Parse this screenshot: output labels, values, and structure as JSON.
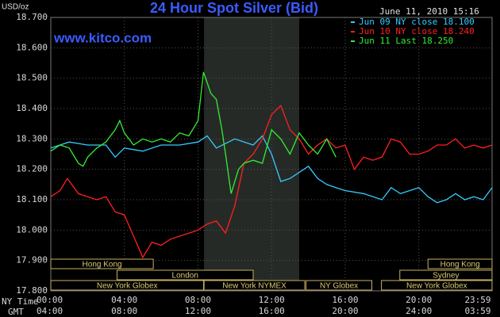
{
  "chart_data": {
    "type": "line",
    "title": "24 Hour Spot Silver (Bid)",
    "timestamp": "June 11, 2010 15:16",
    "y_unit": "USD/oz",
    "source": "www.kitco.com",
    "x_axis_labels": [
      "NY Time",
      "GMT"
    ],
    "xlim": [
      0,
      23.983
    ],
    "xticks": [
      {
        "value": 0,
        "label": "00:00"
      },
      {
        "value": 4,
        "label": "04:00"
      },
      {
        "value": 8,
        "label": "08:00"
      },
      {
        "value": 12,
        "label": "12:00"
      },
      {
        "value": 16,
        "label": "16:00"
      },
      {
        "value": 20,
        "label": "20:00"
      },
      {
        "value": 23.983,
        "label": "23:59"
      }
    ],
    "gmt_tick_labels": [
      "04:00",
      "08:00",
      "12:00",
      "16:00",
      "20:00",
      "24:00",
      "03:59"
    ],
    "ylim": [
      17.8,
      18.7
    ],
    "yticks": [
      {
        "value": 17.8,
        "label": "17.800"
      },
      {
        "value": 17.9,
        "label": "17.900"
      },
      {
        "value": 18.0,
        "label": "18.000"
      },
      {
        "value": 18.1,
        "label": "18.100"
      },
      {
        "value": 18.2,
        "label": "18.200"
      },
      {
        "value": 18.3,
        "label": "18.300"
      },
      {
        "value": 18.4,
        "label": "18.400"
      },
      {
        "value": 18.5,
        "label": "18.500"
      },
      {
        "value": 18.6,
        "label": "18.600"
      },
      {
        "value": 18.7,
        "label": "18.700"
      }
    ],
    "grid": true,
    "shaded_range": [
      8.33,
      13.5
    ],
    "series": [
      {
        "name": "Jun 09 NY close 18.100",
        "color": "#33ccff",
        "x": [
          0,
          1,
          2,
          3,
          3.5,
          4,
          5,
          6,
          7,
          8,
          8.5,
          9,
          10,
          11,
          11.5,
          12,
          12.5,
          13,
          13.5,
          14,
          14.5,
          15,
          15.5,
          16,
          17,
          18,
          18.5,
          19,
          20,
          20.5,
          21,
          21.5,
          22,
          22.5,
          23,
          23.5,
          23.983
        ],
        "values": [
          18.27,
          18.29,
          18.28,
          18.28,
          18.24,
          18.27,
          18.26,
          18.28,
          18.28,
          18.29,
          18.31,
          18.27,
          18.3,
          18.28,
          18.31,
          18.25,
          18.16,
          18.17,
          18.19,
          18.21,
          18.17,
          18.15,
          18.14,
          18.13,
          18.12,
          18.1,
          18.14,
          18.12,
          18.14,
          18.11,
          18.09,
          18.1,
          18.12,
          18.1,
          18.11,
          18.1,
          18.14
        ]
      },
      {
        "name": "Jun 10 NY close 18.240",
        "color": "#ff2020",
        "x": [
          0,
          0.5,
          0.9,
          1.5,
          2,
          2.5,
          3,
          3.5,
          4,
          4.5,
          5,
          5.5,
          6,
          6.5,
          7,
          7.5,
          8,
          8.5,
          9,
          9.5,
          10,
          10.5,
          11,
          11.5,
          12,
          12.5,
          13,
          13.5,
          14,
          14.5,
          15,
          15.5,
          16,
          16.5,
          17,
          17.5,
          18,
          18.5,
          19,
          19.5,
          20,
          20.5,
          21,
          21.5,
          22,
          22.5,
          23,
          23.5,
          23.983
        ],
        "values": [
          18.11,
          18.13,
          18.17,
          18.12,
          18.11,
          18.1,
          18.11,
          18.06,
          18.05,
          17.98,
          17.91,
          17.96,
          17.95,
          17.97,
          17.98,
          17.99,
          18.0,
          18.02,
          18.03,
          17.99,
          18.08,
          18.22,
          18.25,
          18.3,
          18.38,
          18.41,
          18.33,
          18.3,
          18.25,
          18.28,
          18.3,
          18.27,
          18.28,
          18.2,
          18.24,
          18.23,
          18.24,
          18.3,
          18.29,
          18.25,
          18.25,
          18.26,
          18.28,
          18.28,
          18.3,
          18.27,
          18.28,
          18.27,
          18.28
        ]
      },
      {
        "name": "Jun 11 Last 18.250",
        "color": "#33ee33",
        "x": [
          0,
          0.5,
          1,
          1.5,
          1.75,
          2,
          2.5,
          3,
          3.5,
          3.75,
          4,
          4.5,
          5,
          5.5,
          6,
          6.5,
          7,
          7.5,
          8,
          8.3,
          8.7,
          9,
          9.3,
          9.5,
          9.8,
          10.2,
          10.5,
          11,
          11.5,
          12,
          12.5,
          13,
          13.5,
          14,
          14.5,
          15,
          15.5
        ],
        "values": [
          18.26,
          18.28,
          18.27,
          18.22,
          18.21,
          18.24,
          18.27,
          18.29,
          18.33,
          18.36,
          18.32,
          18.28,
          18.3,
          18.29,
          18.3,
          18.29,
          18.32,
          18.31,
          18.36,
          18.52,
          18.45,
          18.43,
          18.33,
          18.25,
          18.12,
          18.2,
          18.22,
          18.23,
          18.22,
          18.33,
          18.3,
          18.25,
          18.32,
          18.28,
          18.25,
          18.3,
          18.24
        ]
      }
    ],
    "market_sessions": [
      [
        {
          "label": "Hong Kong",
          "start": 0,
          "end": 5.57
        },
        {
          "label": "Hong Kong",
          "start": 20.5,
          "end": 23.983
        }
      ],
      [
        {
          "label": "London",
          "start": 3.6,
          "end": 11.0
        },
        {
          "label": "Sydney",
          "start": 18.97,
          "end": 23.983
        }
      ],
      [
        {
          "label": "New York Globex",
          "start": 0,
          "end": 8.3
        },
        {
          "label": "New York NYMEX",
          "start": 8.33,
          "end": 13.8
        },
        {
          "label": "NY Globex",
          "start": 13.87,
          "end": 17.45
        },
        {
          "label": "New York Globex",
          "start": 17.97,
          "end": 23.983
        }
      ]
    ]
  }
}
